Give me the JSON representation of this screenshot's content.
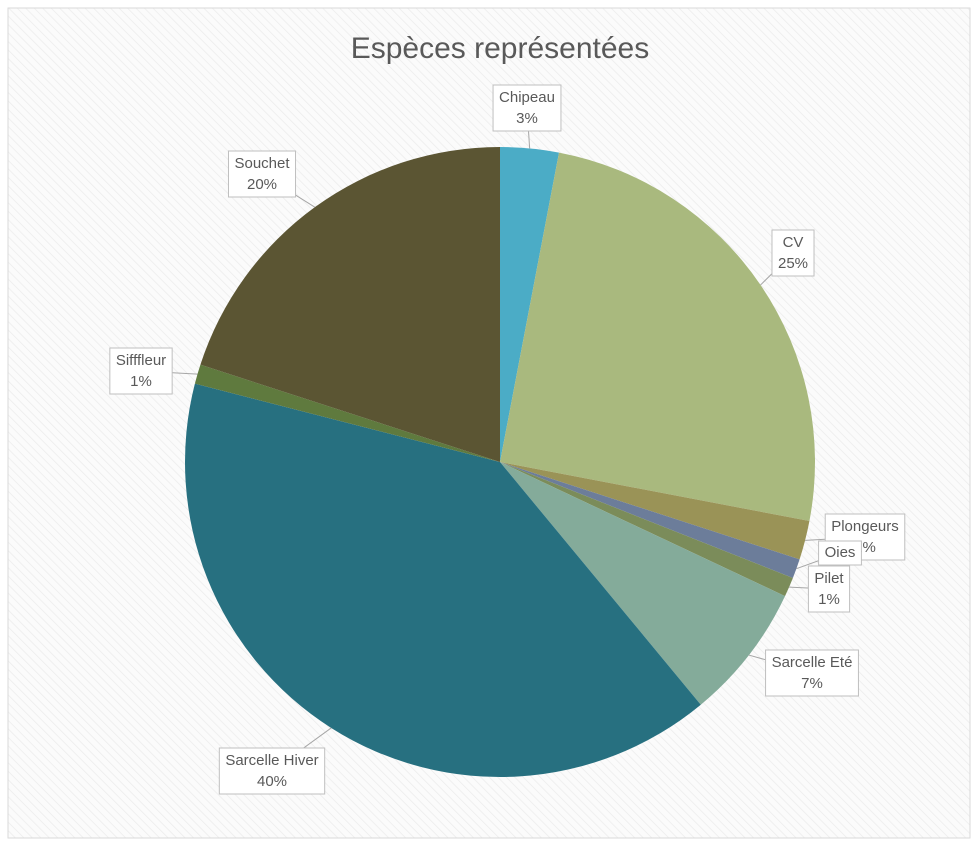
{
  "chart_data": {
    "type": "pie",
    "title": "Espèces représentées",
    "categories": [
      "Chipeau",
      "CV",
      "Plongeurs",
      "Oies",
      "Pilet",
      "Sarcelle Eté",
      "Sarcelle Hiver",
      "Sifffleur",
      "Souchet"
    ],
    "values": [
      3,
      25,
      2,
      1,
      1,
      7,
      40,
      1,
      20
    ],
    "value_labels": [
      "3%",
      "25%",
      "2%",
      null,
      "1%",
      "7%",
      "40%",
      "1%",
      "20%"
    ],
    "colors": [
      "#4bacc6",
      "#a9b97e",
      "#9a9357",
      "#6c7d9a",
      "#7b8c5a",
      "#84ab9a",
      "#277080",
      "#5f7a3e",
      "#5b5533"
    ]
  }
}
